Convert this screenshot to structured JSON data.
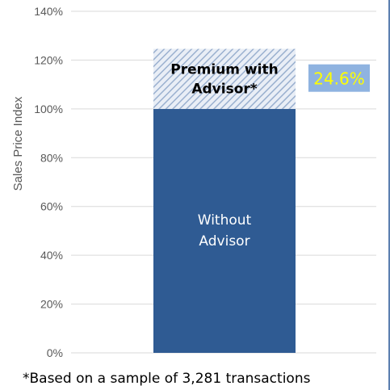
{
  "chart_data": {
    "type": "bar",
    "stacked": true,
    "categories": [
      ""
    ],
    "series": [
      {
        "name": "Without Advisor",
        "values": [
          100
        ]
      },
      {
        "name": "Premium with Advisor*",
        "values": [
          24.6
        ]
      }
    ],
    "segment_labels": [
      "Without\nAdvisor",
      "Premium with\nAdvisor*"
    ],
    "callout": "24.6%",
    "ylabel": "Sales Price Index",
    "ylim": [
      0,
      140
    ],
    "yticks": [
      "0%",
      "20%",
      "40%",
      "60%",
      "80%",
      "100%",
      "120%",
      "140%"
    ],
    "ytick_values": [
      0,
      20,
      40,
      60,
      80,
      100,
      120,
      140
    ],
    "grid": true,
    "colors": {
      "base": "#2f5b93",
      "premium_hatch": "#9ab0cf",
      "premium_bg": "#e9eef6",
      "callout_bg": "#8fb3e0",
      "callout_text": "#ffff00",
      "grid": "#d9d9d9"
    }
  },
  "footnote": "*Based on a sample of 3,281 transactions"
}
